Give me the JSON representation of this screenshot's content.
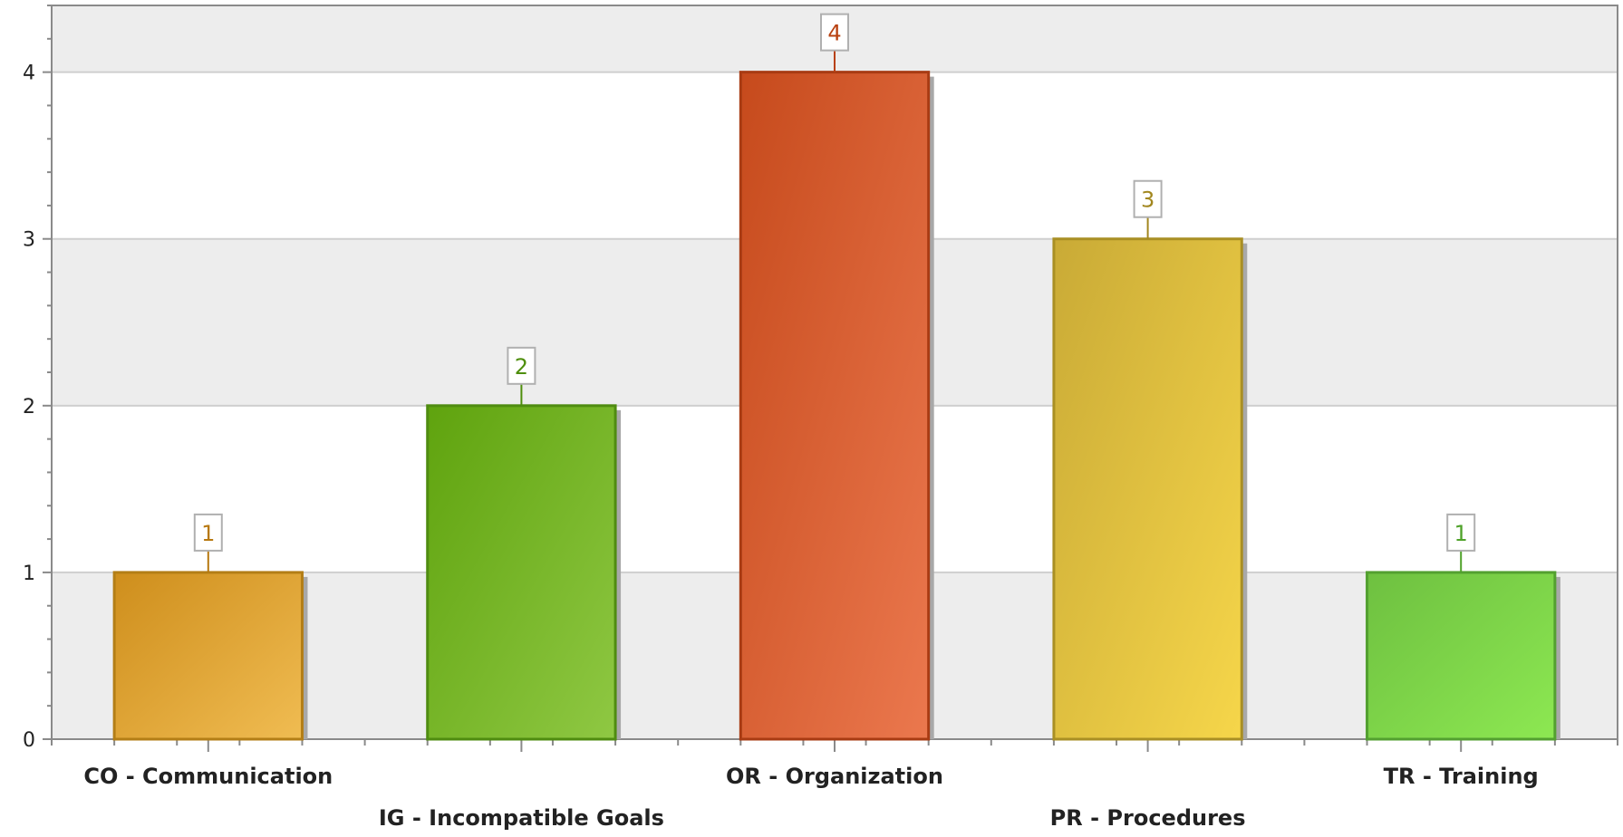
{
  "chart_data": {
    "type": "bar",
    "title": "",
    "xlabel": "",
    "ylabel": "",
    "categories": [
      "CO - Communication",
      "IG - Incompatible Goals",
      "OR - Organization",
      "PR - Procedures",
      "TR - Training"
    ],
    "values": [
      1,
      2,
      4,
      3,
      1
    ],
    "data_labels": [
      "1",
      "2",
      "4",
      "3",
      "1"
    ],
    "ylim": [
      0,
      4.4
    ],
    "yticks": [
      0,
      1,
      2,
      3,
      4
    ],
    "ytick_labels": [
      "0",
      "1",
      "2",
      "3",
      "4"
    ],
    "grid": true,
    "alternating_bands": true,
    "legend": "none",
    "colors": {
      "bars": [
        {
          "light": "#F0BC52",
          "dark": "#CE8E1C",
          "stroke": "#B37E16",
          "label": "#B7780F"
        },
        {
          "light": "#8FC843",
          "dark": "#5FA30E",
          "stroke": "#4F8C10",
          "label": "#4E8E0C"
        },
        {
          "light": "#EB784E",
          "dark": "#C64A1C",
          "stroke": "#A83B13",
          "label": "#B8400F"
        },
        {
          "light": "#F6D64A",
          "dark": "#C9AA36",
          "stroke": "#A98F24",
          "label": "#A2871F"
        },
        {
          "light": "#8DE852",
          "dark": "#6EC040",
          "stroke": "#53A030",
          "label": "#4FA22A"
        }
      ],
      "band": "#EDEDED",
      "gridline": "#CFCFCF",
      "axis": "#8A8A8A",
      "shadow": "#A8A8A8"
    }
  }
}
